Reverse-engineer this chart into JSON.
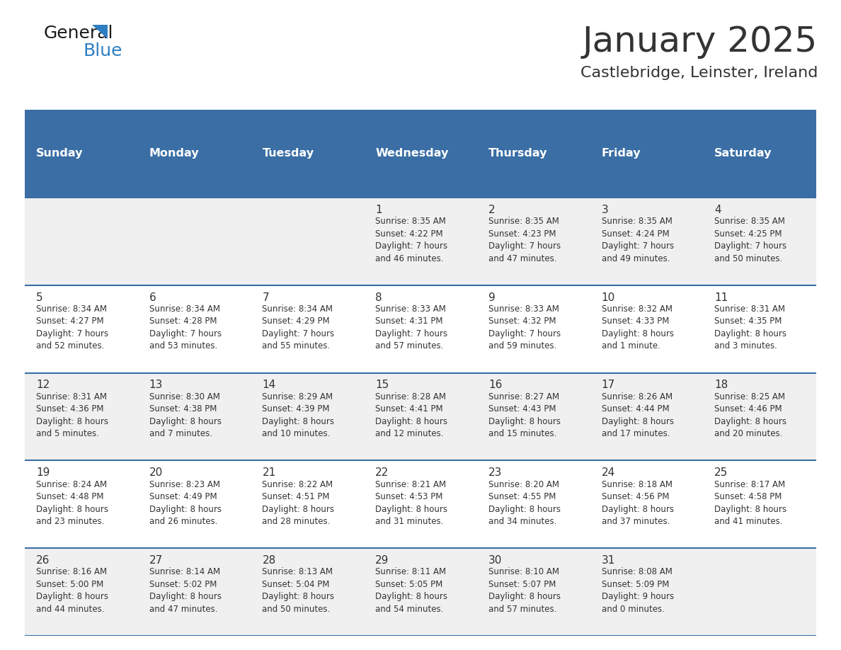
{
  "title": "January 2025",
  "subtitle": "Castlebridge, Leinster, Ireland",
  "header_bg_color": "#3a6ea5",
  "header_text_color": "#ffffff",
  "row_bg_even": "#f0f0f0",
  "row_bg_odd": "#ffffff",
  "text_color": "#333333",
  "border_color": "#3a6ea5",
  "days_of_week": [
    "Sunday",
    "Monday",
    "Tuesday",
    "Wednesday",
    "Thursday",
    "Friday",
    "Saturday"
  ],
  "weeks": [
    [
      {
        "day": null,
        "info": null
      },
      {
        "day": null,
        "info": null
      },
      {
        "day": null,
        "info": null
      },
      {
        "day": 1,
        "info": "Sunrise: 8:35 AM\nSunset: 4:22 PM\nDaylight: 7 hours\nand 46 minutes."
      },
      {
        "day": 2,
        "info": "Sunrise: 8:35 AM\nSunset: 4:23 PM\nDaylight: 7 hours\nand 47 minutes."
      },
      {
        "day": 3,
        "info": "Sunrise: 8:35 AM\nSunset: 4:24 PM\nDaylight: 7 hours\nand 49 minutes."
      },
      {
        "day": 4,
        "info": "Sunrise: 8:35 AM\nSunset: 4:25 PM\nDaylight: 7 hours\nand 50 minutes."
      }
    ],
    [
      {
        "day": 5,
        "info": "Sunrise: 8:34 AM\nSunset: 4:27 PM\nDaylight: 7 hours\nand 52 minutes."
      },
      {
        "day": 6,
        "info": "Sunrise: 8:34 AM\nSunset: 4:28 PM\nDaylight: 7 hours\nand 53 minutes."
      },
      {
        "day": 7,
        "info": "Sunrise: 8:34 AM\nSunset: 4:29 PM\nDaylight: 7 hours\nand 55 minutes."
      },
      {
        "day": 8,
        "info": "Sunrise: 8:33 AM\nSunset: 4:31 PM\nDaylight: 7 hours\nand 57 minutes."
      },
      {
        "day": 9,
        "info": "Sunrise: 8:33 AM\nSunset: 4:32 PM\nDaylight: 7 hours\nand 59 minutes."
      },
      {
        "day": 10,
        "info": "Sunrise: 8:32 AM\nSunset: 4:33 PM\nDaylight: 8 hours\nand 1 minute."
      },
      {
        "day": 11,
        "info": "Sunrise: 8:31 AM\nSunset: 4:35 PM\nDaylight: 8 hours\nand 3 minutes."
      }
    ],
    [
      {
        "day": 12,
        "info": "Sunrise: 8:31 AM\nSunset: 4:36 PM\nDaylight: 8 hours\nand 5 minutes."
      },
      {
        "day": 13,
        "info": "Sunrise: 8:30 AM\nSunset: 4:38 PM\nDaylight: 8 hours\nand 7 minutes."
      },
      {
        "day": 14,
        "info": "Sunrise: 8:29 AM\nSunset: 4:39 PM\nDaylight: 8 hours\nand 10 minutes."
      },
      {
        "day": 15,
        "info": "Sunrise: 8:28 AM\nSunset: 4:41 PM\nDaylight: 8 hours\nand 12 minutes."
      },
      {
        "day": 16,
        "info": "Sunrise: 8:27 AM\nSunset: 4:43 PM\nDaylight: 8 hours\nand 15 minutes."
      },
      {
        "day": 17,
        "info": "Sunrise: 8:26 AM\nSunset: 4:44 PM\nDaylight: 8 hours\nand 17 minutes."
      },
      {
        "day": 18,
        "info": "Sunrise: 8:25 AM\nSunset: 4:46 PM\nDaylight: 8 hours\nand 20 minutes."
      }
    ],
    [
      {
        "day": 19,
        "info": "Sunrise: 8:24 AM\nSunset: 4:48 PM\nDaylight: 8 hours\nand 23 minutes."
      },
      {
        "day": 20,
        "info": "Sunrise: 8:23 AM\nSunset: 4:49 PM\nDaylight: 8 hours\nand 26 minutes."
      },
      {
        "day": 21,
        "info": "Sunrise: 8:22 AM\nSunset: 4:51 PM\nDaylight: 8 hours\nand 28 minutes."
      },
      {
        "day": 22,
        "info": "Sunrise: 8:21 AM\nSunset: 4:53 PM\nDaylight: 8 hours\nand 31 minutes."
      },
      {
        "day": 23,
        "info": "Sunrise: 8:20 AM\nSunset: 4:55 PM\nDaylight: 8 hours\nand 34 minutes."
      },
      {
        "day": 24,
        "info": "Sunrise: 8:18 AM\nSunset: 4:56 PM\nDaylight: 8 hours\nand 37 minutes."
      },
      {
        "day": 25,
        "info": "Sunrise: 8:17 AM\nSunset: 4:58 PM\nDaylight: 8 hours\nand 41 minutes."
      }
    ],
    [
      {
        "day": 26,
        "info": "Sunrise: 8:16 AM\nSunset: 5:00 PM\nDaylight: 8 hours\nand 44 minutes."
      },
      {
        "day": 27,
        "info": "Sunrise: 8:14 AM\nSunset: 5:02 PM\nDaylight: 8 hours\nand 47 minutes."
      },
      {
        "day": 28,
        "info": "Sunrise: 8:13 AM\nSunset: 5:04 PM\nDaylight: 8 hours\nand 50 minutes."
      },
      {
        "day": 29,
        "info": "Sunrise: 8:11 AM\nSunset: 5:05 PM\nDaylight: 8 hours\nand 54 minutes."
      },
      {
        "day": 30,
        "info": "Sunrise: 8:10 AM\nSunset: 5:07 PM\nDaylight: 8 hours\nand 57 minutes."
      },
      {
        "day": 31,
        "info": "Sunrise: 8:08 AM\nSunset: 5:09 PM\nDaylight: 9 hours\nand 0 minutes."
      },
      {
        "day": null,
        "info": null
      }
    ]
  ],
  "logo_color_general": "#1a1a1a",
  "logo_color_blue": "#2e7fc1",
  "logo_triangle_color": "#2e7fc1",
  "title_fontsize": 36,
  "subtitle_fontsize": 16,
  "logo_fontsize": 18,
  "header_fontsize": 11.5,
  "day_num_fontsize": 11,
  "info_fontsize": 8.5
}
